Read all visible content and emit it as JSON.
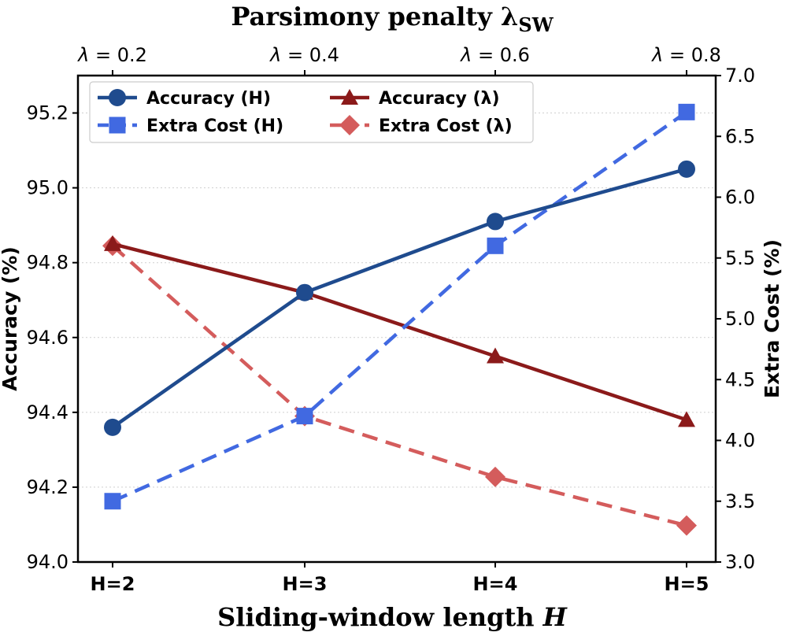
{
  "chart_data": {
    "type": "line",
    "title": "Parsimony penalty λ",
    "title_subscript": "SW",
    "xlabel": "Sliding-window length",
    "xlabel_var": "H",
    "ylabel_left": "Accuracy (%)",
    "ylabel_right": "Extra Cost (%)",
    "categories": [
      "H=2",
      "H=3",
      "H=4",
      "H=5"
    ],
    "top_categories": [
      {
        "symbol": "λ",
        "text": " = 0.2"
      },
      {
        "symbol": "λ",
        "text": " = 0.4"
      },
      {
        "symbol": "λ",
        "text": " = 0.6"
      },
      {
        "symbol": "λ",
        "text": " = 0.8"
      }
    ],
    "y_left": {
      "lim": [
        94.0,
        95.3
      ],
      "ticks": [
        "94.0",
        "94.2",
        "94.4",
        "94.6",
        "94.8",
        "95.0",
        "95.2"
      ]
    },
    "y_right": {
      "lim": [
        3.0,
        7.0
      ],
      "ticks": [
        "3.0",
        "3.5",
        "4.0",
        "4.5",
        "5.0",
        "5.5",
        "6.0",
        "6.5",
        "7.0"
      ]
    },
    "grid": "horizontal dotted",
    "legend_position": "top-left",
    "series": [
      {
        "name": "Accuracy (H)",
        "axis": "left",
        "values": [
          94.36,
          94.72,
          94.91,
          95.05
        ],
        "color": "#1f4b8e",
        "style": "solid",
        "marker": "circle"
      },
      {
        "name": "Extra Cost (H)",
        "axis": "right",
        "values": [
          3.5,
          4.2,
          5.6,
          6.7
        ],
        "color": "#4169e1",
        "style": "dashed",
        "marker": "square"
      },
      {
        "name": "Accuracy (λ)",
        "axis": "left",
        "values": [
          94.85,
          94.72,
          94.55,
          94.38
        ],
        "color": "#8b1a1a",
        "style": "solid",
        "marker": "triangle"
      },
      {
        "name": "Extra Cost (λ)",
        "axis": "right",
        "values": [
          5.6,
          4.2,
          3.7,
          3.3
        ],
        "color": "#d45c5c",
        "style": "dashed",
        "marker": "diamond"
      }
    ]
  }
}
